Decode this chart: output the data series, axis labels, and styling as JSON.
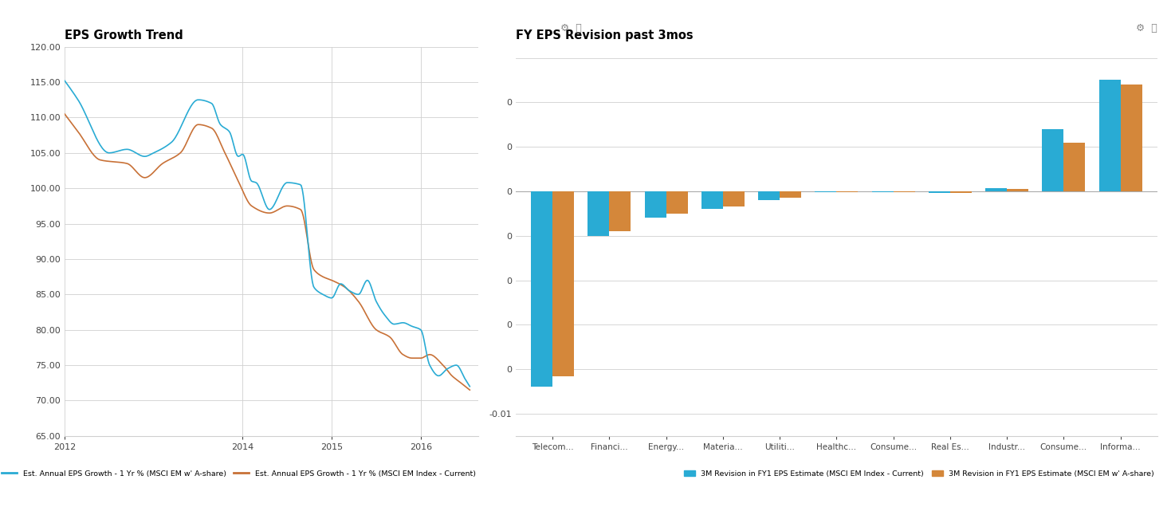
{
  "left_title": "EPS Growth Trend",
  "right_title": "FY EPS Revision past 3mos",
  "line_cyan_color": "#29ABD4",
  "line_orange_color": "#C87137",
  "bar_cyan_color": "#29ABD4",
  "bar_orange_color": "#D4873A",
  "background_color": "#FFFFFF",
  "grid_color": "#D0D0D0",
  "line_ylim": [
    65,
    120
  ],
  "line_yticks": [
    65.0,
    70.0,
    75.0,
    80.0,
    85.0,
    90.0,
    95.0,
    100.0,
    105.0,
    110.0,
    115.0,
    120.0
  ],
  "line_legend1": "Est. Annual EPS Growth - 1 Yr % (MSCI EM w' A-share)",
  "line_legend2": "Est. Annual EPS Growth - 1 Yr % (MSCI EM Index - Current)",
  "bar_categories": [
    "Telecom...",
    "Financi...",
    "Energy...",
    "Materia...",
    "Utiliti...",
    "Healthc...",
    "Consume...",
    "Real Es...",
    "Industr...",
    "Consume...",
    "Informa..."
  ],
  "bar_cyan_values": [
    -0.0088,
    -0.002,
    -0.0012,
    -0.0008,
    -0.0004,
    -5e-05,
    -5e-05,
    -8e-05,
    0.00015,
    0.0028,
    0.005
  ],
  "bar_orange_values": [
    -0.0083,
    -0.0018,
    -0.001,
    -0.0007,
    -0.0003,
    -3e-05,
    -4e-05,
    -6e-05,
    0.0001,
    0.0022,
    0.0048
  ],
  "bar_ylim": [
    -0.011,
    0.0065
  ],
  "bar_legend1": "3M Revision in FY1 EPS Estimate (MSCI EM Index - Current)",
  "bar_legend2": "3M Revision in FY1 EPS Estimate (MSCI EM w' A-share)"
}
